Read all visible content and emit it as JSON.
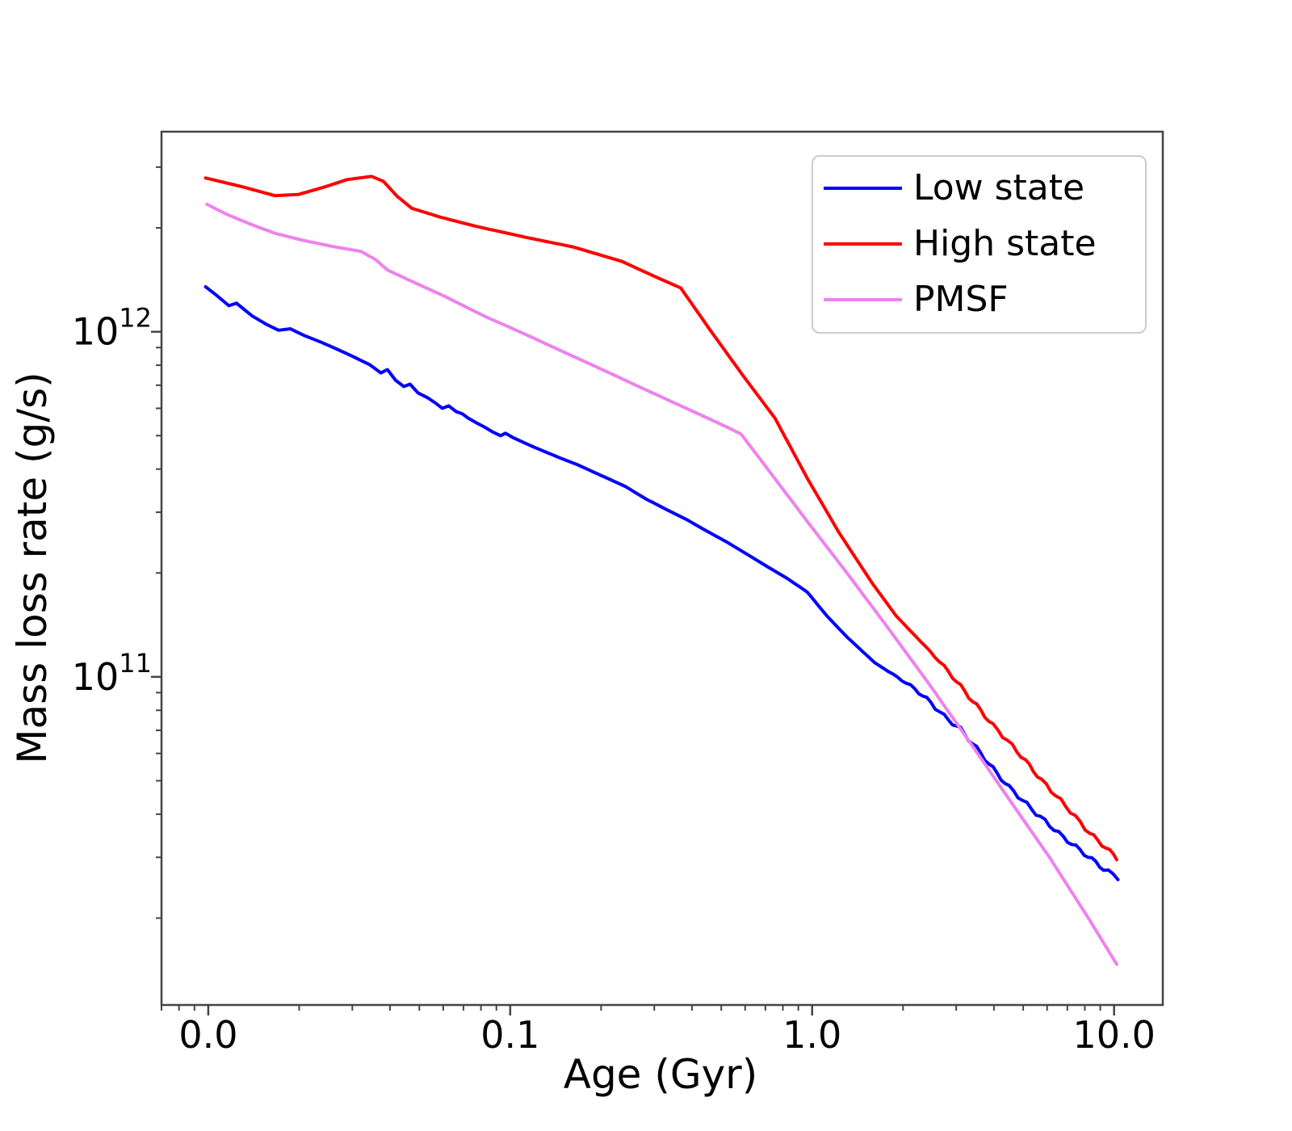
{
  "chart_data": {
    "type": "line",
    "title": "",
    "xlabel": "Age (Gyr)",
    "ylabel": "Mass loss rate (g/s)",
    "x_scale": "log",
    "y_scale": "log",
    "xlim": [
      0.007,
      14.5
    ],
    "ylim": [
      11200000000.0,
      3800000000000.0
    ],
    "grid": false,
    "x_ticks": [
      {
        "label": "0.0",
        "value": 0.01
      },
      {
        "label": "0.1",
        "value": 0.1
      },
      {
        "label": "1.0",
        "value": 1.0
      },
      {
        "label": "10.0",
        "value": 10.0
      }
    ],
    "y_ticks": [
      {
        "mantissa": "10",
        "exponent": "12",
        "value": 1000000000000.0
      },
      {
        "mantissa": "10",
        "exponent": "11",
        "value": 100000000000.0
      }
    ],
    "minor_ticks": true,
    "legend": {
      "position": "upper right"
    },
    "axis_color": "#444444",
    "text_color": "#000000",
    "series": [
      {
        "name": "Low state",
        "color": "#0000ff",
        "wiggle": {
          "after_x": 1.7,
          "amp_dex": 0.006,
          "period_dex": 0.055
        },
        "points": [
          [
            0.0098,
            1350000000000.0
          ],
          [
            0.0106,
            1280000000000.0
          ],
          [
            0.0117,
            1190000000000.0
          ],
          [
            0.0124,
            1210000000000.0
          ],
          [
            0.014,
            1110000000000.0
          ],
          [
            0.0156,
            1050000000000.0
          ],
          [
            0.0171,
            1010000000000.0
          ],
          [
            0.0187,
            1020000000000.0
          ],
          [
            0.0209,
            973000000000.0
          ],
          [
            0.0237,
            932000000000.0
          ],
          [
            0.0268,
            889000000000.0
          ],
          [
            0.0303,
            846000000000.0
          ],
          [
            0.0343,
            802000000000.0
          ],
          [
            0.0373,
            760000000000.0
          ],
          [
            0.0392,
            777000000000.0
          ],
          [
            0.0417,
            724000000000.0
          ],
          [
            0.0444,
            694000000000.0
          ],
          [
            0.0466,
            705000000000.0
          ],
          [
            0.0496,
            664000000000.0
          ],
          [
            0.0534,
            643000000000.0
          ],
          [
            0.0568,
            620000000000.0
          ],
          [
            0.0596,
            600000000000.0
          ],
          [
            0.0626,
            610000000000.0
          ],
          [
            0.0662,
            587000000000.0
          ],
          [
            0.0695,
            578000000000.0
          ],
          [
            0.0726,
            562000000000.0
          ],
          [
            0.0772,
            545000000000.0
          ],
          [
            0.0821,
            530000000000.0
          ],
          [
            0.0873,
            513000000000.0
          ],
          [
            0.0929,
            500000000000.0
          ],
          [
            0.0964,
            508000000000.0
          ],
          [
            0.102,
            494000000000.0
          ],
          [
            0.11,
            479000000000.0
          ],
          [
            0.12,
            463000000000.0
          ],
          [
            0.133,
            446000000000.0
          ],
          [
            0.147,
            430000000000.0
          ],
          [
            0.167,
            412000000000.0
          ],
          [
            0.189,
            392000000000.0
          ],
          [
            0.213,
            374000000000.0
          ],
          [
            0.241,
            356000000000.0
          ],
          [
            0.281,
            328000000000.0
          ],
          [
            0.328,
            306000000000.0
          ],
          [
            0.383,
            286000000000.0
          ],
          [
            0.446,
            265000000000.0
          ],
          [
            0.521,
            246000000000.0
          ],
          [
            0.607,
            227000000000.0
          ],
          [
            0.708,
            209000000000.0
          ],
          [
            0.826,
            193000000000.0
          ],
          [
            0.964,
            176000000000.0
          ],
          [
            1.12,
            150000000000.0
          ],
          [
            1.31,
            130000000000.0
          ],
          [
            1.61,
            110000000000.0
          ],
          [
            1.98,
            97900000000.0
          ],
          [
            2.19,
            92300000000.0
          ],
          [
            2.47,
            84200000000.0
          ],
          [
            2.74,
            76800000000.0
          ],
          [
            3.1,
            70500000000.0
          ],
          [
            3.51,
            62000000000.0
          ],
          [
            4.1,
            52400000000.0
          ],
          [
            4.49,
            47900000000.0
          ],
          [
            5.51,
            40300000000.0
          ],
          [
            6.79,
            34300000000.0
          ],
          [
            7.96,
            30800000000.0
          ],
          [
            9.23,
            27800000000.0
          ],
          [
            10.3,
            26200000000.0
          ]
        ]
      },
      {
        "name": "High state",
        "color": "#ff0000",
        "wiggle": {
          "after_x": 2.2,
          "amp_dex": 0.006,
          "period_dex": 0.055
        },
        "points": [
          [
            0.0098,
            2790000000000.0
          ],
          [
            0.013,
            2630000000000.0
          ],
          [
            0.0166,
            2480000000000.0
          ],
          [
            0.0199,
            2500000000000.0
          ],
          [
            0.024,
            2620000000000.0
          ],
          [
            0.0288,
            2760000000000.0
          ],
          [
            0.0347,
            2820000000000.0
          ],
          [
            0.038,
            2730000000000.0
          ],
          [
            0.0422,
            2470000000000.0
          ],
          [
            0.0472,
            2280000000000.0
          ],
          [
            0.0585,
            2150000000000.0
          ],
          [
            0.0772,
            2020000000000.0
          ],
          [
            0.112,
            1880000000000.0
          ],
          [
            0.162,
            1760000000000.0
          ],
          [
            0.234,
            1600000000000.0
          ],
          [
            0.299,
            1450000000000.0
          ],
          [
            0.367,
            1340000000000.0
          ],
          [
            0.46,
            1010000000000.0
          ],
          [
            0.589,
            748000000000.0
          ],
          [
            0.753,
            562000000000.0
          ],
          [
            0.964,
            376000000000.0
          ],
          [
            1.23,
            261000000000.0
          ],
          [
            1.58,
            187000000000.0
          ],
          [
            1.9,
            150000000000.0
          ],
          [
            2.28,
            127000000000.0
          ],
          [
            2.74,
            107000000000.0
          ],
          [
            3.3,
            87900000000.0
          ],
          [
            3.97,
            72400000000.0
          ],
          [
            4.77,
            61000000000.0
          ],
          [
            5.75,
            50200000000.0
          ],
          [
            6.91,
            42300000000.0
          ],
          [
            8.31,
            35200000000.0
          ],
          [
            9.4,
            32000000000.0
          ],
          [
            10.2,
            29800000000.0
          ]
        ]
      },
      {
        "name": "PMSF",
        "color": "#ee82ee",
        "wiggle": null,
        "points": [
          [
            0.0099,
            2340000000000.0
          ],
          [
            0.0115,
            2190000000000.0
          ],
          [
            0.0138,
            2050000000000.0
          ],
          [
            0.0166,
            1930000000000.0
          ],
          [
            0.0206,
            1840000000000.0
          ],
          [
            0.0255,
            1770000000000.0
          ],
          [
            0.032,
            1710000000000.0
          ],
          [
            0.0358,
            1620000000000.0
          ],
          [
            0.0392,
            1510000000000.0
          ],
          [
            0.0472,
            1400000000000.0
          ],
          [
            0.0603,
            1270000000000.0
          ],
          [
            0.0821,
            1110000000000.0
          ],
          [
            0.112,
            984000000000.0
          ],
          [
            0.152,
            870000000000.0
          ],
          [
            0.207,
            769000000000.0
          ],
          [
            0.281,
            679000000000.0
          ],
          [
            0.383,
            600000000000.0
          ],
          [
            0.521,
            530000000000.0
          ],
          [
            0.582,
            505000000000.0
          ],
          [
            0.708,
            403000000000.0
          ],
          [
            0.964,
            282000000000.0
          ],
          [
            1.31,
            199000000000.0
          ],
          [
            1.78,
            139000000000.0
          ],
          [
            2.43,
            95800000000.0
          ],
          [
            3.3,
            65400000000.0
          ],
          [
            4.49,
            44200000000.0
          ],
          [
            6.11,
            30000000000.0
          ],
          [
            8.31,
            19700000000.0
          ],
          [
            10.2,
            14700000000.0
          ]
        ]
      }
    ]
  }
}
